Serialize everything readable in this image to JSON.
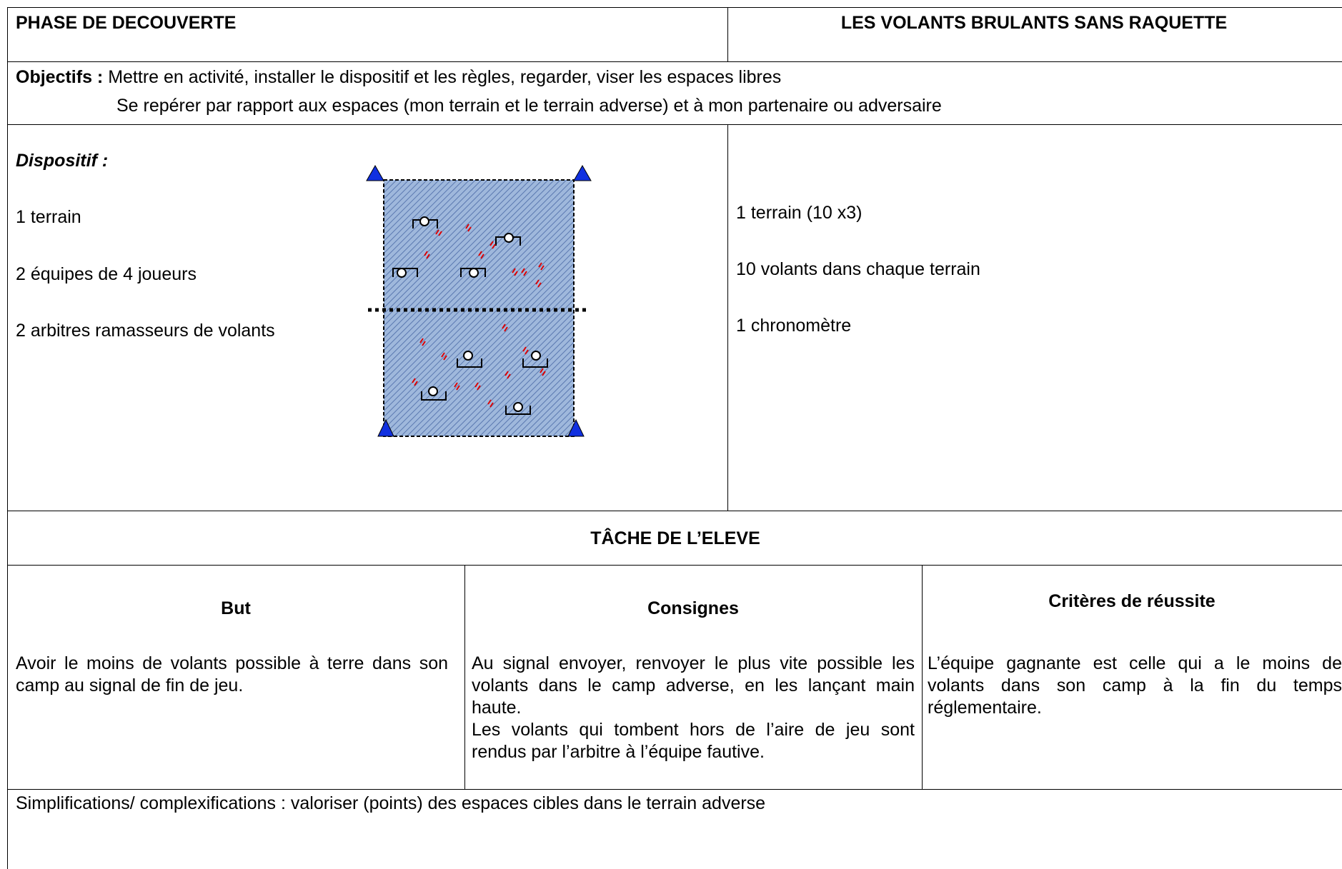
{
  "header": {
    "left": "PHASE DE DECOUVERTE",
    "right": "LES VOLANTS BRULANTS SANS RAQUETTE"
  },
  "objectifs": {
    "label": "Objectifs :",
    "lines": [
      "Mettre en activité, installer le dispositif et les règles, regarder, viser les espaces libres",
      "Se repérer par rapport aux espaces (mon terrain et le terrain adverse) et à mon partenaire ou adversaire"
    ]
  },
  "dispositif": {
    "title": "Dispositif :",
    "items": [
      "1 terrain",
      "2 équipes de 4 joueurs",
      "2 arbitres ramasseurs de volants"
    ]
  },
  "materiel": {
    "items": [
      "1 terrain (10 x3)",
      "10 volants dans chaque terrain",
      "1 chronomètre"
    ]
  },
  "tache": {
    "title": "TÂCHE DE L’ELEVE"
  },
  "columns": [
    {
      "heading": "But",
      "paragraphs": [
        "Avoir le moins de volants possible à terre dans son camp au signal de fin de jeu."
      ]
    },
    {
      "heading": "Consignes",
      "paragraphs": [
        "Au signal envoyer, renvoyer le plus vite possible les volants dans le camp adverse, en les lançant main haute.",
        "Les volants qui tombent hors de l’aire de jeu sont rendus par l’arbitre à l’équipe fautive."
      ]
    },
    {
      "heading": "Critères de réussite",
      "paragraphs": [
        "L’équipe gagnante est celle qui a le moins de volants dans son camp à la fin du temps réglementaire."
      ]
    }
  ],
  "simplifications": "Simplifications/ complexifications : valoriser (points) des espaces cibles dans le terrain adverse"
}
